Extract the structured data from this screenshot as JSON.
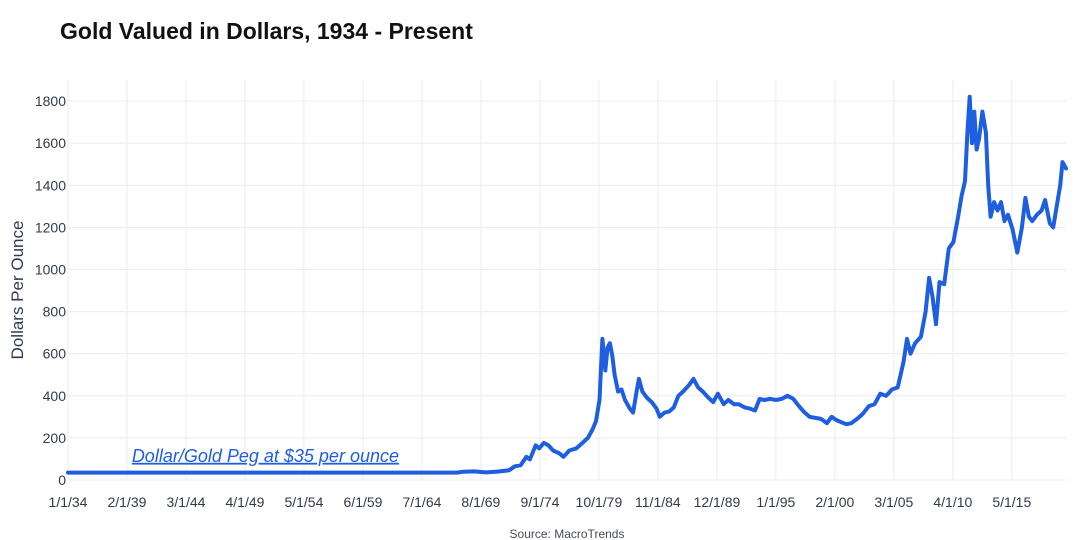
{
  "title": "Gold Valued in Dollars, 1934 - Present",
  "source": "Source: MacroTrends",
  "colors": {
    "line": "#1e5ee0",
    "grid": "#ececf0",
    "text": "#333a4d"
  },
  "chart_data": {
    "type": "line",
    "title": "Gold Valued in Dollars, 1934 - Present",
    "xlabel": "",
    "ylabel": "Dollars Per Ounce",
    "xlim": [
      1934.0,
      2020.0
    ],
    "ylim": [
      0,
      1900
    ],
    "yticks": [
      0,
      200,
      400,
      600,
      800,
      1000,
      1200,
      1400,
      1600,
      1800
    ],
    "xticks": [
      {
        "x": 1934.0,
        "label": "1/1/34"
      },
      {
        "x": 1939.08,
        "label": "2/1/39"
      },
      {
        "x": 1944.17,
        "label": "3/1/44"
      },
      {
        "x": 1949.25,
        "label": "4/1/49"
      },
      {
        "x": 1954.33,
        "label": "5/1/54"
      },
      {
        "x": 1959.42,
        "label": "6/1/59"
      },
      {
        "x": 1964.5,
        "label": "7/1/64"
      },
      {
        "x": 1969.58,
        "label": "8/1/69"
      },
      {
        "x": 1974.67,
        "label": "9/1/74"
      },
      {
        "x": 1979.75,
        "label": "10/1/79"
      },
      {
        "x": 1984.83,
        "label": "11/1/84"
      },
      {
        "x": 1989.92,
        "label": "12/1/89"
      },
      {
        "x": 1995.0,
        "label": "1/1/95"
      },
      {
        "x": 2000.08,
        "label": "2/1/00"
      },
      {
        "x": 2005.17,
        "label": "3/1/05"
      },
      {
        "x": 2010.25,
        "label": "4/1/10"
      },
      {
        "x": 2015.33,
        "label": "5/1/15"
      }
    ],
    "grid": true,
    "series": [
      {
        "values": [
          [
            1934.0,
            35
          ],
          [
            1950.0,
            35
          ],
          [
            1960.0,
            35
          ],
          [
            1967.5,
            35
          ],
          [
            1968.0,
            39
          ],
          [
            1969.0,
            41
          ],
          [
            1970.0,
            36
          ],
          [
            1971.0,
            40
          ],
          [
            1972.0,
            46
          ],
          [
            1972.5,
            65
          ],
          [
            1973.0,
            70
          ],
          [
            1973.5,
            110
          ],
          [
            1973.8,
            98
          ],
          [
            1974.3,
            165
          ],
          [
            1974.6,
            150
          ],
          [
            1975.0,
            176
          ],
          [
            1975.4,
            165
          ],
          [
            1975.8,
            140
          ],
          [
            1976.3,
            128
          ],
          [
            1976.7,
            110
          ],
          [
            1977.2,
            140
          ],
          [
            1977.8,
            150
          ],
          [
            1978.3,
            175
          ],
          [
            1978.8,
            200
          ],
          [
            1979.2,
            240
          ],
          [
            1979.5,
            280
          ],
          [
            1979.8,
            380
          ],
          [
            1980.05,
            670
          ],
          [
            1980.3,
            520
          ],
          [
            1980.5,
            630
          ],
          [
            1980.7,
            650
          ],
          [
            1980.9,
            590
          ],
          [
            1981.1,
            500
          ],
          [
            1981.4,
            420
          ],
          [
            1981.7,
            430
          ],
          [
            1982.0,
            380
          ],
          [
            1982.4,
            340
          ],
          [
            1982.7,
            320
          ],
          [
            1983.0,
            420
          ],
          [
            1983.2,
            480
          ],
          [
            1983.5,
            420
          ],
          [
            1983.9,
            390
          ],
          [
            1984.3,
            370
          ],
          [
            1984.7,
            340
          ],
          [
            1985.0,
            300
          ],
          [
            1985.4,
            320
          ],
          [
            1985.8,
            325
          ],
          [
            1986.2,
            345
          ],
          [
            1986.6,
            400
          ],
          [
            1987.0,
            420
          ],
          [
            1987.5,
            450
          ],
          [
            1987.9,
            480
          ],
          [
            1988.3,
            440
          ],
          [
            1988.7,
            420
          ],
          [
            1989.2,
            390
          ],
          [
            1989.6,
            370
          ],
          [
            1990.0,
            410
          ],
          [
            1990.5,
            360
          ],
          [
            1990.9,
            380
          ],
          [
            1991.4,
            360
          ],
          [
            1991.8,
            360
          ],
          [
            1992.3,
            345
          ],
          [
            1992.7,
            340
          ],
          [
            1993.2,
            330
          ],
          [
            1993.6,
            385
          ],
          [
            1994.0,
            380
          ],
          [
            1994.5,
            385
          ],
          [
            1995.0,
            380
          ],
          [
            1995.5,
            385
          ],
          [
            1996.0,
            400
          ],
          [
            1996.5,
            385
          ],
          [
            1997.0,
            350
          ],
          [
            1997.4,
            325
          ],
          [
            1997.9,
            300
          ],
          [
            1998.4,
            295
          ],
          [
            1998.9,
            290
          ],
          [
            1999.4,
            270
          ],
          [
            1999.8,
            300
          ],
          [
            2000.2,
            285
          ],
          [
            2000.6,
            275
          ],
          [
            2001.1,
            265
          ],
          [
            2001.5,
            270
          ],
          [
            2002.0,
            290
          ],
          [
            2002.5,
            315
          ],
          [
            2003.0,
            350
          ],
          [
            2003.5,
            360
          ],
          [
            2004.0,
            410
          ],
          [
            2004.5,
            400
          ],
          [
            2005.0,
            430
          ],
          [
            2005.5,
            440
          ],
          [
            2006.0,
            560
          ],
          [
            2006.3,
            670
          ],
          [
            2006.6,
            600
          ],
          [
            2007.0,
            650
          ],
          [
            2007.5,
            680
          ],
          [
            2007.9,
            800
          ],
          [
            2008.2,
            960
          ],
          [
            2008.5,
            870
          ],
          [
            2008.8,
            740
          ],
          [
            2009.1,
            940
          ],
          [
            2009.5,
            930
          ],
          [
            2009.9,
            1100
          ],
          [
            2010.3,
            1130
          ],
          [
            2010.7,
            1250
          ],
          [
            2011.0,
            1350
          ],
          [
            2011.3,
            1420
          ],
          [
            2011.5,
            1650
          ],
          [
            2011.7,
            1820
          ],
          [
            2011.9,
            1600
          ],
          [
            2012.1,
            1750
          ],
          [
            2012.3,
            1570
          ],
          [
            2012.5,
            1620
          ],
          [
            2012.8,
            1750
          ],
          [
            2013.1,
            1650
          ],
          [
            2013.3,
            1400
          ],
          [
            2013.5,
            1250
          ],
          [
            2013.8,
            1320
          ],
          [
            2014.1,
            1280
          ],
          [
            2014.4,
            1320
          ],
          [
            2014.7,
            1230
          ],
          [
            2015.0,
            1260
          ],
          [
            2015.4,
            1190
          ],
          [
            2015.8,
            1080
          ],
          [
            2016.2,
            1200
          ],
          [
            2016.5,
            1340
          ],
          [
            2016.8,
            1250
          ],
          [
            2017.1,
            1230
          ],
          [
            2017.5,
            1260
          ],
          [
            2017.9,
            1280
          ],
          [
            2018.2,
            1330
          ],
          [
            2018.6,
            1220
          ],
          [
            2018.9,
            1200
          ],
          [
            2019.2,
            1300
          ],
          [
            2019.5,
            1400
          ],
          [
            2019.7,
            1510
          ],
          [
            2020.0,
            1480
          ]
        ]
      }
    ],
    "annotations": [
      {
        "text": "Dollar/Gold Peg at $35 per ounce",
        "x": 1939.5,
        "y": 115
      }
    ]
  }
}
